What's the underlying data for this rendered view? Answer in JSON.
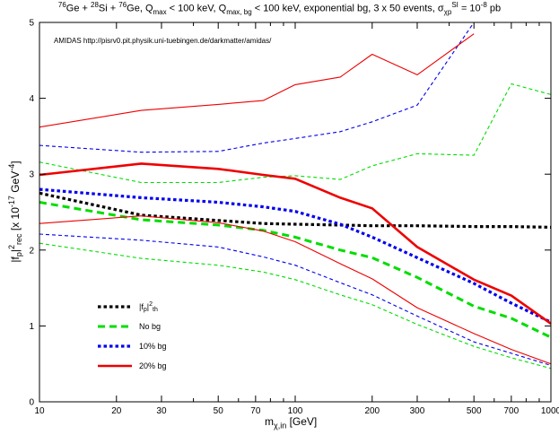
{
  "title": {
    "t1": "76",
    "t2": "Ge + ",
    "t3": "28",
    "t4": "Si + ",
    "t5": "76",
    "t6": "Ge, Q",
    "t7": "max",
    "t8": " < 100 keV, Q",
    "t9": "max, bg",
    "t10": " < 100 keV, exponential bg, 3 x 50 events, σ",
    "t11": "χp",
    "t12": "SI",
    "t13": " = 10",
    "t14": "-8",
    "t15": " pb"
  },
  "credit": "AMIDAS   http://pisrv0.pit.physik.uni-tuebingen.de/darkmatter/amidas/",
  "xlabel": {
    "a": "m",
    "b": "χ,in",
    "c": " [GeV]"
  },
  "ylabel": {
    "a": "|f",
    "b": "p",
    "c": "|",
    "d": "2",
    "e": "rec",
    "f": "  [x 10",
    "g": "-17",
    "h": " GeV",
    "i": "-4",
    "j": "]"
  },
  "colors": {
    "black": "#000000",
    "green": "#00dd00",
    "blue": "#0000ee",
    "red": "#ee0000"
  },
  "chart_data": {
    "type": "line",
    "xscale": "log",
    "xlim": [
      10,
      1000
    ],
    "ylim": [
      0,
      5
    ],
    "xticks": [
      10,
      20,
      30,
      50,
      70,
      100,
      200,
      300,
      500,
      700,
      1000
    ],
    "xtick_labels": [
      "10",
      "20",
      "30",
      "50",
      "70",
      "100",
      "200",
      "300",
      "500",
      "700",
      "1000"
    ],
    "yticks": [
      0,
      1,
      2,
      3,
      4,
      5
    ],
    "ytick_labels": [
      "0",
      "1",
      "2",
      "3",
      "4",
      "5"
    ],
    "x": [
      10,
      25,
      50,
      75,
      100,
      150,
      200,
      300,
      500,
      700,
      1000
    ],
    "legend_position": "bottom-left",
    "legend": [
      {
        "label": "|f",
        "sub": "p",
        "mid": "|",
        "sup": "2",
        "tail": "th",
        "color": "#000000",
        "style": "dotted-thick"
      },
      {
        "label": "No bg",
        "color": "#00dd00",
        "style": "dashed-thick"
      },
      {
        "label": "10% bg",
        "color": "#0000ee",
        "style": "dotted-thick"
      },
      {
        "label": "20% bg",
        "color": "#ee0000",
        "style": "solid-thick"
      }
    ],
    "series": [
      {
        "group": "theory",
        "color": "#000000",
        "style": "dotted-thick",
        "values": [
          2.75,
          2.46,
          2.39,
          2.35,
          2.34,
          2.33,
          2.32,
          2.32,
          2.31,
          2.31,
          2.3
        ]
      },
      {
        "group": "nobg",
        "color": "#00dd00",
        "style": "dashed-thick",
        "values": [
          2.63,
          2.4,
          2.33,
          2.26,
          2.17,
          2.0,
          1.9,
          1.64,
          1.26,
          1.1,
          0.85
        ]
      },
      {
        "group": "nobg",
        "color": "#00dd00",
        "style": "dashed-thin",
        "values": [
          3.16,
          2.89,
          2.89,
          2.96,
          2.98,
          2.93,
          3.11,
          3.27,
          3.25,
          4.19,
          4.05
        ]
      },
      {
        "group": "nobg",
        "color": "#00dd00",
        "style": "dashed-thin",
        "values": [
          2.09,
          1.89,
          1.8,
          1.71,
          1.61,
          1.41,
          1.28,
          1.02,
          0.73,
          0.58,
          0.44
        ]
      },
      {
        "group": "bg10",
        "color": "#0000ee",
        "style": "dotted-thick",
        "values": [
          2.8,
          2.69,
          2.63,
          2.57,
          2.51,
          2.34,
          2.17,
          1.9,
          1.56,
          1.3,
          1.05
        ]
      },
      {
        "group": "bg10",
        "color": "#0000ee",
        "style": "dashed-thin",
        "values": [
          3.38,
          3.29,
          3.3,
          3.41,
          3.47,
          3.56,
          3.69,
          3.91,
          5.0,
          null,
          null
        ]
      },
      {
        "group": "bg10",
        "color": "#0000ee",
        "style": "dashed-thin",
        "values": [
          2.21,
          2.13,
          2.04,
          1.91,
          1.8,
          1.57,
          1.41,
          1.13,
          0.79,
          0.64,
          0.48
        ]
      },
      {
        "group": "bg20",
        "color": "#ee0000",
        "style": "solid-thick",
        "values": [
          2.99,
          3.14,
          3.07,
          2.99,
          2.94,
          2.69,
          2.55,
          2.04,
          1.61,
          1.4,
          1.03
        ]
      },
      {
        "group": "bg20",
        "color": "#ee0000",
        "style": "solid-thin",
        "values": [
          3.62,
          3.84,
          3.92,
          3.97,
          4.18,
          4.28,
          4.58,
          4.31,
          4.85,
          null,
          null
        ]
      },
      {
        "group": "bg20",
        "color": "#ee0000",
        "style": "solid-thin",
        "values": [
          2.35,
          2.45,
          2.36,
          2.25,
          2.11,
          1.82,
          1.62,
          1.24,
          0.9,
          0.69,
          0.5
        ]
      }
    ]
  }
}
